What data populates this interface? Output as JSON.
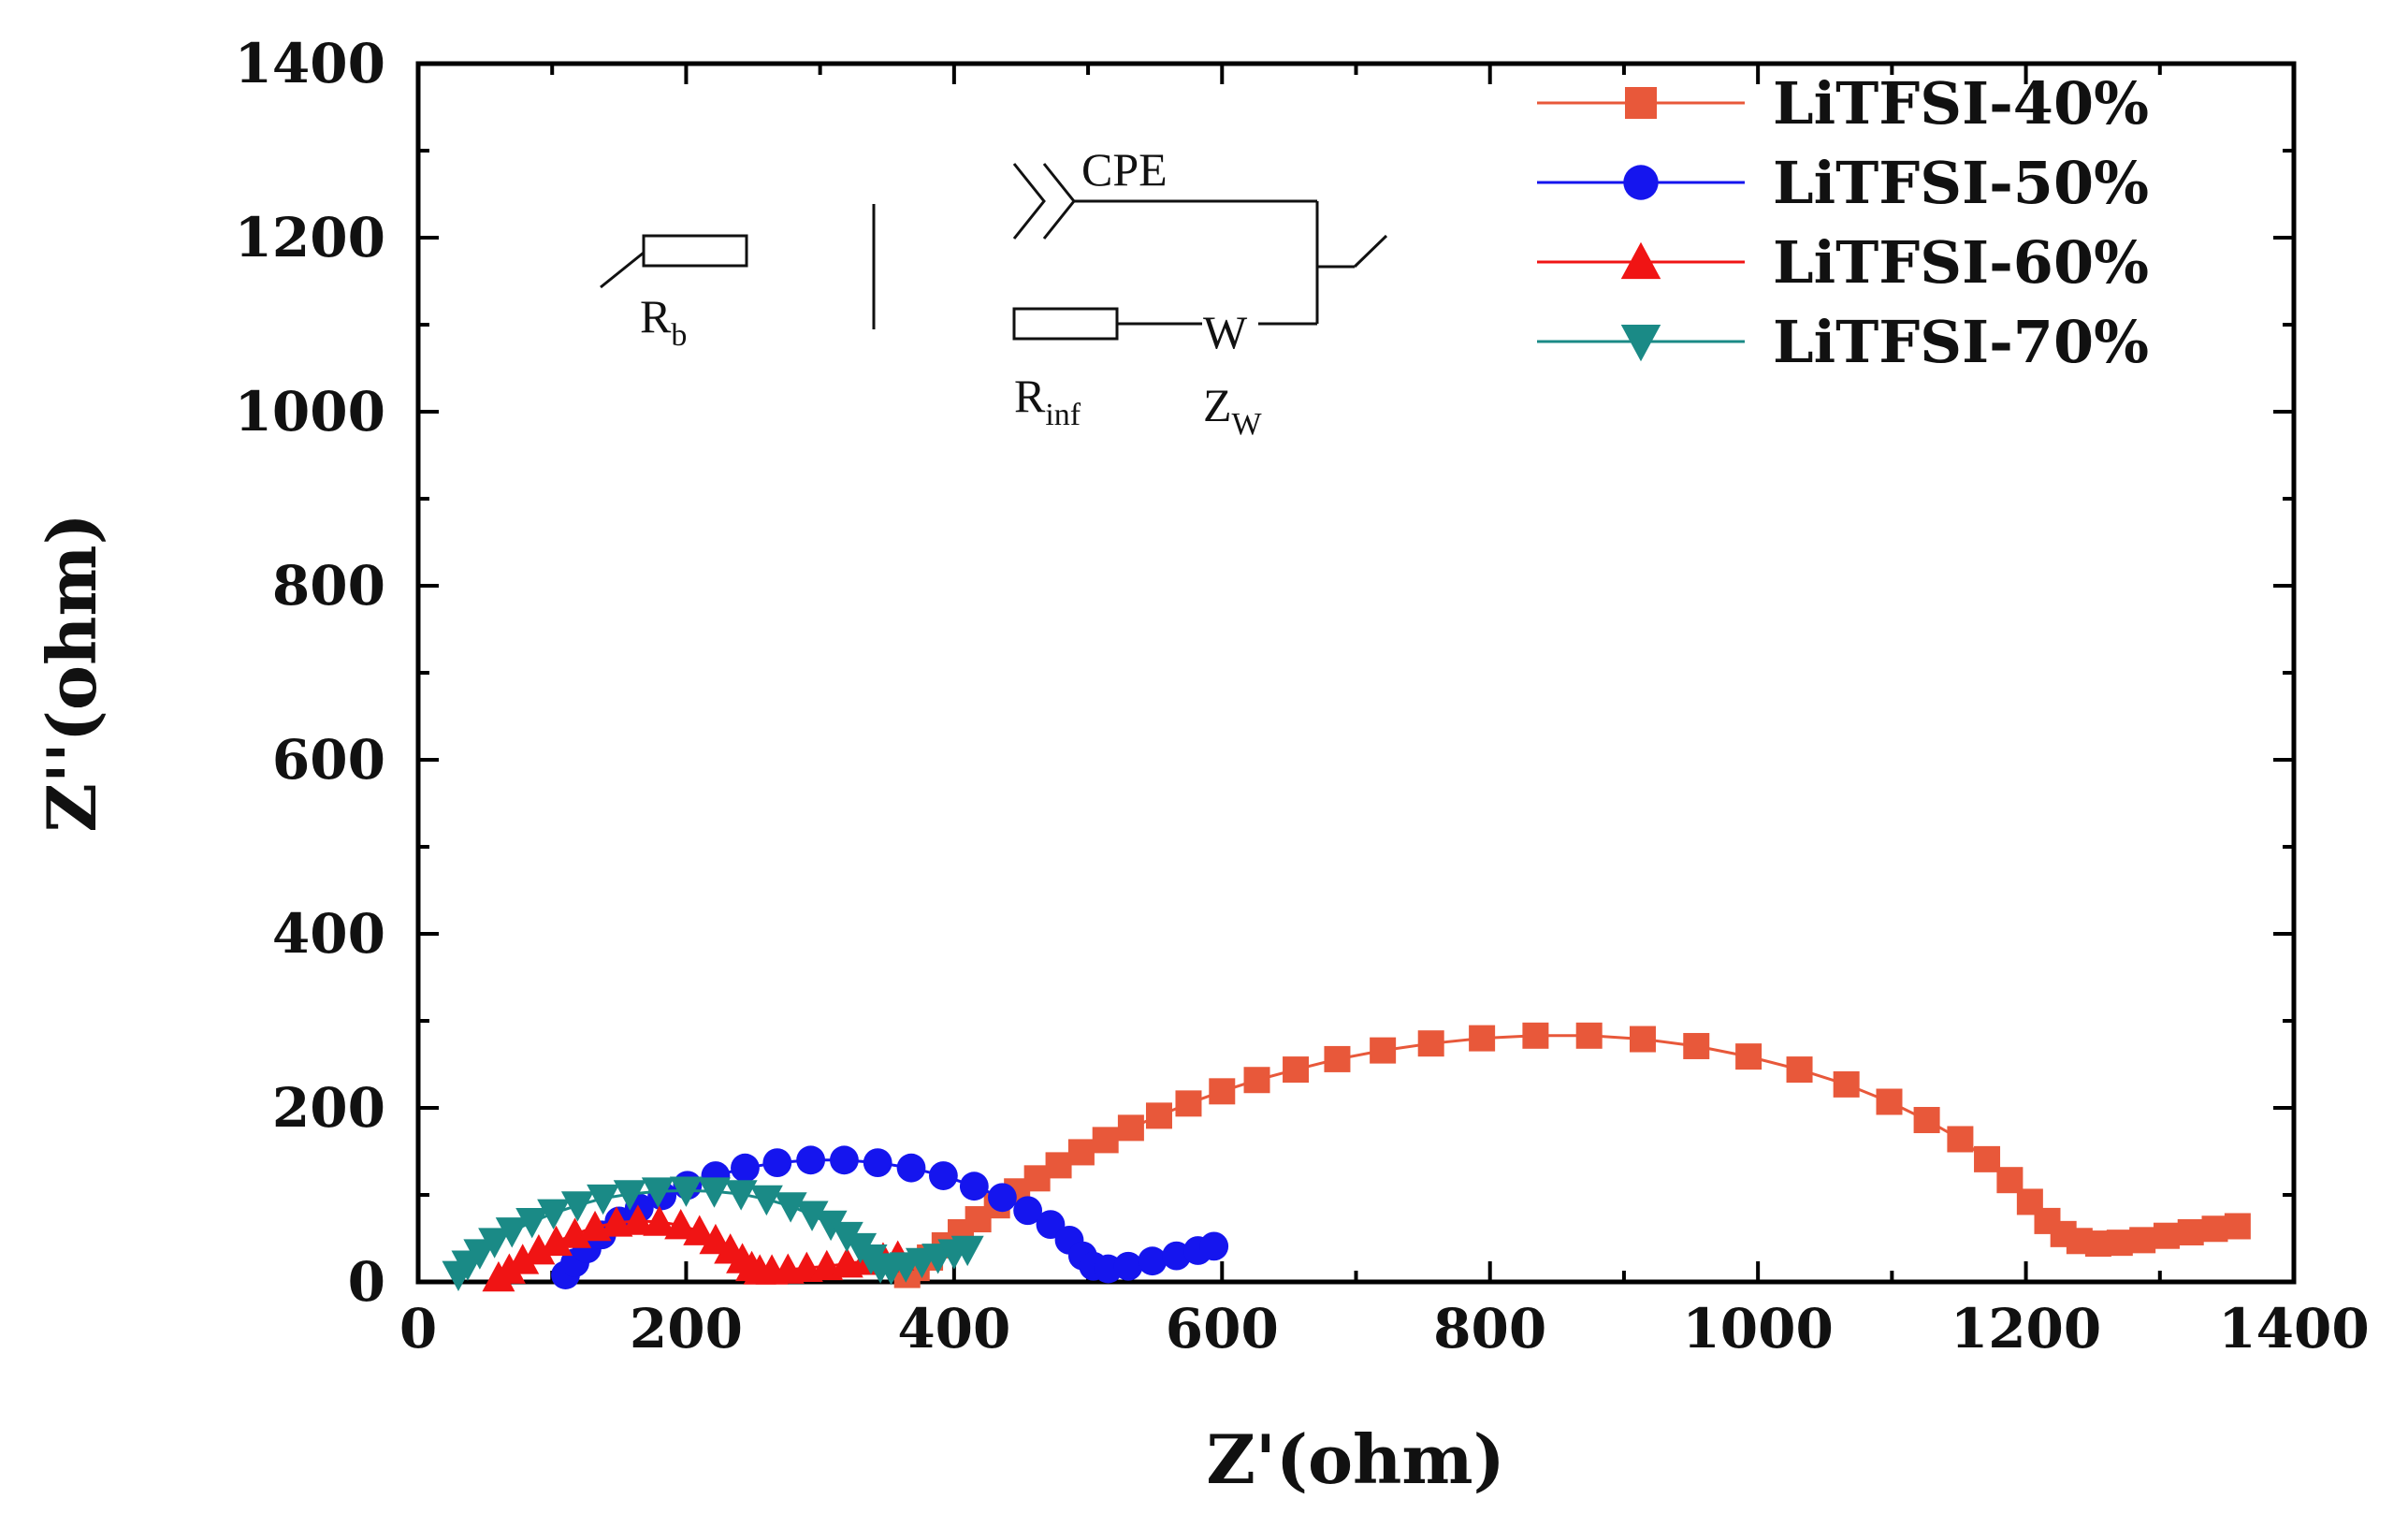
{
  "chart_data": {
    "type": "scatter",
    "title": "",
    "xlabel": "Z'(ohm)",
    "ylabel": "Z''(ohm)",
    "xlim": [
      0,
      1400
    ],
    "ylim": [
      0,
      1400
    ],
    "xticks": [
      0,
      200,
      400,
      600,
      800,
      1000,
      1200,
      1400
    ],
    "yticks": [
      0,
      200,
      400,
      600,
      800,
      1000,
      1200,
      1400
    ],
    "legend_position": "top-right",
    "series": [
      {
        "name": "LiTFSI-40%",
        "marker": "square",
        "color": "#e8583a",
        "points": [
          [
            365,
            8
          ],
          [
            372,
            16
          ],
          [
            382,
            28
          ],
          [
            393,
            42
          ],
          [
            405,
            57
          ],
          [
            418,
            72
          ],
          [
            432,
            88
          ],
          [
            447,
            104
          ],
          [
            462,
            119
          ],
          [
            478,
            134
          ],
          [
            495,
            149
          ],
          [
            513,
            163
          ],
          [
            532,
            177
          ],
          [
            553,
            191
          ],
          [
            575,
            205
          ],
          [
            600,
            219
          ],
          [
            626,
            232
          ],
          [
            655,
            244
          ],
          [
            686,
            256
          ],
          [
            720,
            266
          ],
          [
            756,
            274
          ],
          [
            794,
            280
          ],
          [
            834,
            283
          ],
          [
            874,
            283
          ],
          [
            914,
            279
          ],
          [
            954,
            271
          ],
          [
            993,
            259
          ],
          [
            1031,
            244
          ],
          [
            1066,
            227
          ],
          [
            1098,
            207
          ],
          [
            1126,
            186
          ],
          [
            1151,
            164
          ],
          [
            1171,
            141
          ],
          [
            1188,
            117
          ],
          [
            1203,
            92
          ],
          [
            1216,
            70
          ],
          [
            1228,
            55
          ],
          [
            1240,
            47
          ],
          [
            1254,
            44
          ],
          [
            1270,
            45
          ],
          [
            1287,
            48
          ],
          [
            1305,
            53
          ],
          [
            1323,
            57
          ],
          [
            1341,
            61
          ],
          [
            1358,
            64
          ]
        ]
      },
      {
        "name": "LiTFSI-50%",
        "marker": "circle",
        "color": "#1515ee",
        "points": [
          [
            110,
            8
          ],
          [
            117,
            22
          ],
          [
            126,
            38
          ],
          [
            137,
            54
          ],
          [
            150,
            70
          ],
          [
            165,
            85
          ],
          [
            182,
            99
          ],
          [
            201,
            111
          ],
          [
            222,
            122
          ],
          [
            244,
            131
          ],
          [
            268,
            137
          ],
          [
            293,
            140
          ],
          [
            318,
            140
          ],
          [
            343,
            137
          ],
          [
            368,
            131
          ],
          [
            392,
            122
          ],
          [
            415,
            110
          ],
          [
            436,
            97
          ],
          [
            455,
            82
          ],
          [
            472,
            66
          ],
          [
            486,
            48
          ],
          [
            496,
            30
          ],
          [
            504,
            18
          ],
          [
            515,
            15
          ],
          [
            530,
            18
          ],
          [
            548,
            24
          ],
          [
            566,
            30
          ],
          [
            582,
            36
          ],
          [
            594,
            41
          ]
        ]
      },
      {
        "name": "LiTFSI-60%",
        "marker": "triangle-up",
        "color": "#f01414",
        "points": [
          [
            60,
            5
          ],
          [
            68,
            14
          ],
          [
            78,
            25
          ],
          [
            90,
            36
          ],
          [
            103,
            46
          ],
          [
            117,
            55
          ],
          [
            132,
            63
          ],
          [
            148,
            68
          ],
          [
            164,
            70
          ],
          [
            180,
            69
          ],
          [
            196,
            65
          ],
          [
            210,
            58
          ],
          [
            222,
            48
          ],
          [
            233,
            37
          ],
          [
            242,
            26
          ],
          [
            249,
            17
          ],
          [
            255,
            13
          ],
          [
            264,
            13
          ],
          [
            276,
            14
          ],
          [
            290,
            16
          ],
          [
            305,
            18
          ],
          [
            320,
            21
          ],
          [
            334,
            24
          ],
          [
            347,
            27
          ],
          [
            358,
            29
          ]
        ]
      },
      {
        "name": "LiTFSI-70%",
        "marker": "triangle-down",
        "color": "#1a8a86",
        "points": [
          [
            30,
            8
          ],
          [
            37,
            20
          ],
          [
            46,
            33
          ],
          [
            57,
            46
          ],
          [
            70,
            58
          ],
          [
            85,
            69
          ],
          [
            101,
            79
          ],
          [
            119,
            88
          ],
          [
            138,
            96
          ],
          [
            158,
            101
          ],
          [
            179,
            104
          ],
          [
            200,
            105
          ],
          [
            221,
            104
          ],
          [
            241,
            101
          ],
          [
            260,
            95
          ],
          [
            278,
            87
          ],
          [
            294,
            77
          ],
          [
            308,
            66
          ],
          [
            320,
            53
          ],
          [
            330,
            40
          ],
          [
            338,
            27
          ],
          [
            345,
            17
          ],
          [
            353,
            15
          ],
          [
            364,
            18
          ],
          [
            376,
            23
          ],
          [
            388,
            28
          ],
          [
            400,
            33
          ],
          [
            410,
            37
          ]
        ]
      }
    ]
  },
  "inset": {
    "label_Rb": "R",
    "label_Rb_sub": "b",
    "label_cpe": "CPE",
    "label_w": "W",
    "label_Rinf": "R",
    "label_Rinf_sub": "inf",
    "label_Zw": "Z",
    "label_Zw_sub": "W"
  }
}
